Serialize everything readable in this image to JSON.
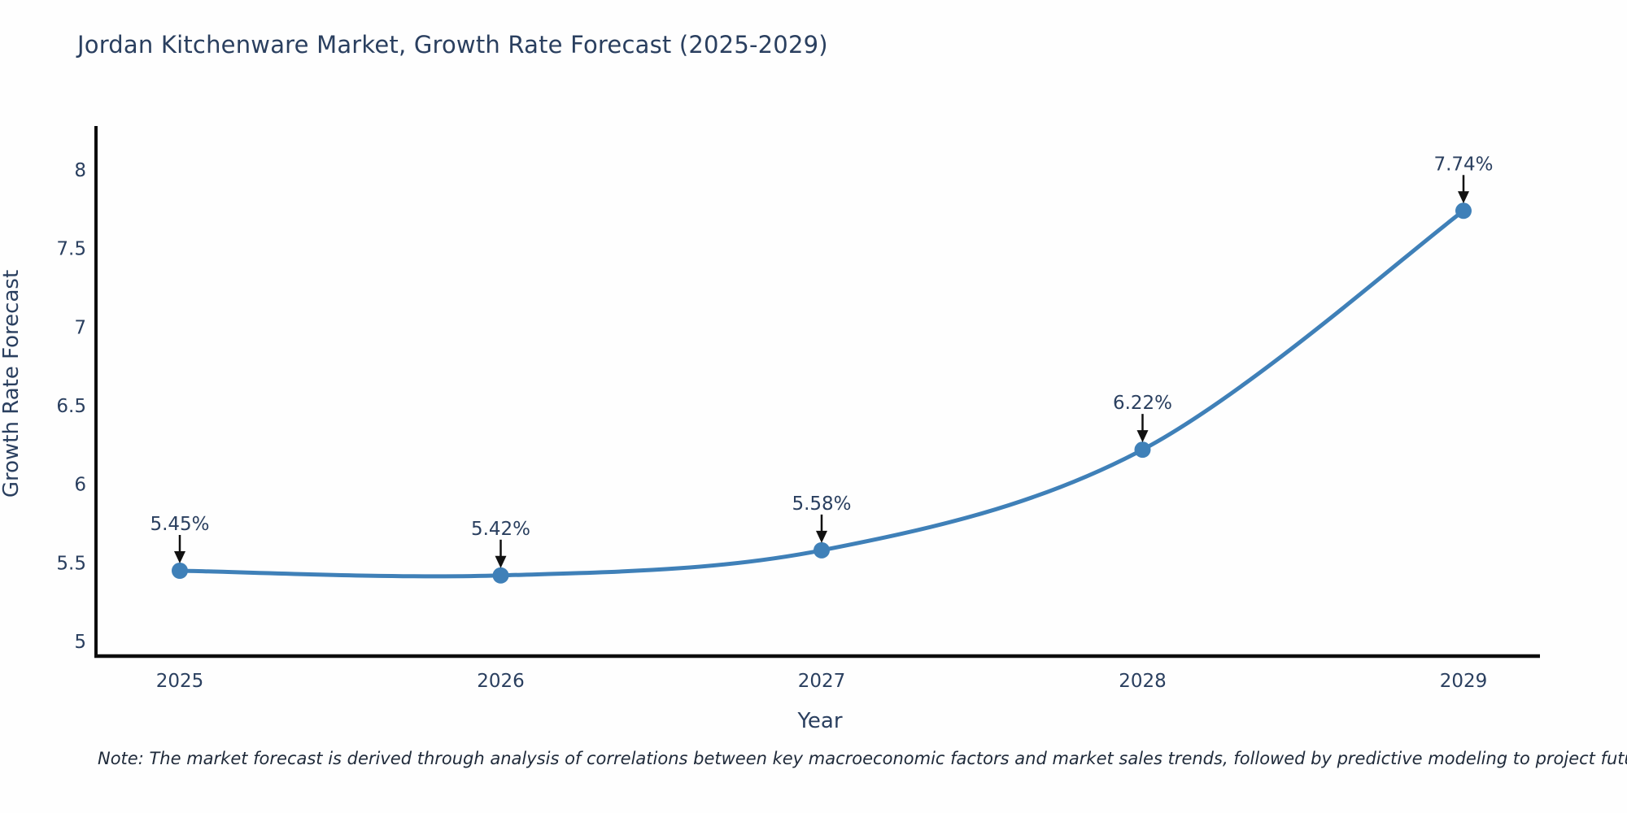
{
  "header": {
    "title": "Jordan Kitchenware Market, Growth Rate Forecast (2025-2029)"
  },
  "chart_data": {
    "type": "line",
    "title": "Jordan Kitchenware Market, Growth Rate Forecast (2025-2029)",
    "x": [
      "2025",
      "2026",
      "2027",
      "2028",
      "2029"
    ],
    "values": [
      5.45,
      5.42,
      5.58,
      6.22,
      7.74
    ],
    "point_labels": [
      "5.45%",
      "5.42%",
      "5.58%",
      "6.22%",
      "7.74%"
    ],
    "xlabel": "Year",
    "ylabel": "Growth Rate Forecast",
    "yticks": [
      5,
      5.5,
      6,
      6.5,
      7,
      7.5,
      8
    ],
    "ylim": [
      4.9,
      8.27
    ],
    "grid": false,
    "legend": false,
    "line_style": "spline",
    "colors": {
      "line": "#3f80b8",
      "marker": "#3f80b8",
      "axis": "#0d0d0d",
      "text": "#2a3f5f",
      "annotation_arrow": "#111111"
    }
  },
  "footer": {
    "note": "Note: The market forecast is derived through analysis of correlations between key macroeconomic factors and market sales trends, followed by predictive modeling to project future sales"
  }
}
